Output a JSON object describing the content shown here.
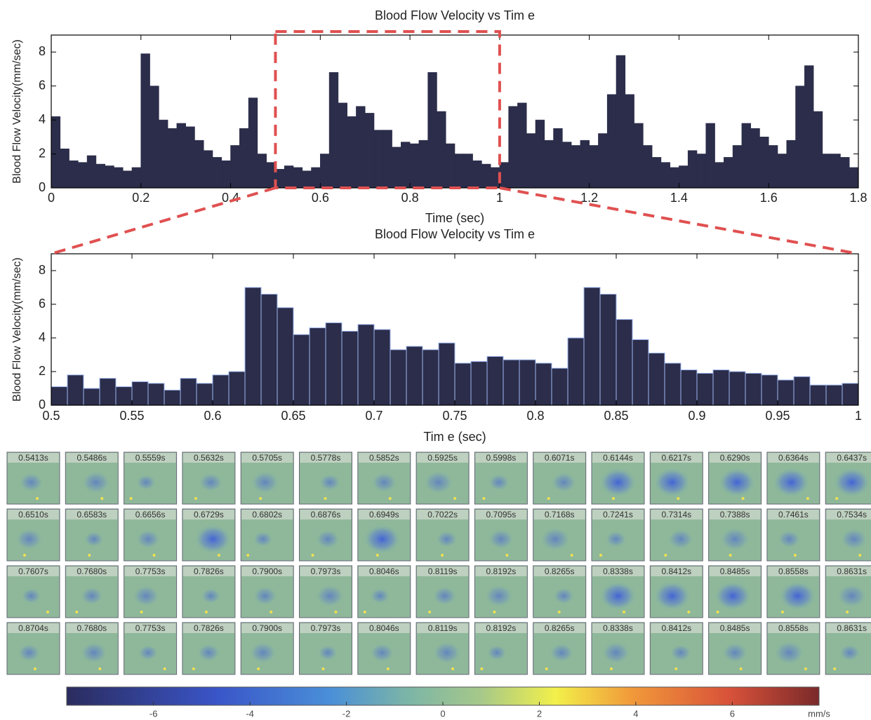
{
  "chart_data": [
    {
      "type": "bar",
      "title": "Blood Flow Velocity vs Tim e",
      "xlabel": "Time (sec)",
      "ylabel": "Blood Flow Velocity(mm/sec)",
      "color": "#2b2d4a",
      "x": [
        0,
        0.02,
        0.04,
        0.06,
        0.08,
        0.1,
        0.12,
        0.14,
        0.16,
        0.18,
        0.2,
        0.22,
        0.24,
        0.26,
        0.28,
        0.3,
        0.32,
        0.34,
        0.36,
        0.38,
        0.4,
        0.42,
        0.44,
        0.46,
        0.48,
        0.5,
        0.52,
        0.54,
        0.56,
        0.58,
        0.6,
        0.62,
        0.64,
        0.66,
        0.68,
        0.7,
        0.72,
        0.74,
        0.76,
        0.78,
        0.8,
        0.82,
        0.84,
        0.86,
        0.88,
        0.9,
        0.92,
        0.94,
        0.96,
        0.98,
        1.0,
        1.02,
        1.04,
        1.06,
        1.08,
        1.1,
        1.12,
        1.14,
        1.16,
        1.18,
        1.2,
        1.22,
        1.24,
        1.26,
        1.28,
        1.3,
        1.32,
        1.34,
        1.36,
        1.38,
        1.4,
        1.42,
        1.44,
        1.46,
        1.48,
        1.5,
        1.52,
        1.54,
        1.56,
        1.58,
        1.6,
        1.62,
        1.64,
        1.66,
        1.68,
        1.7,
        1.72,
        1.74,
        1.76,
        1.78
      ],
      "values": [
        4.2,
        2.3,
        1.6,
        1.5,
        1.9,
        1.4,
        1.3,
        1.2,
        1.0,
        1.2,
        7.9,
        6.0,
        4.0,
        3.5,
        3.8,
        3.6,
        2.8,
        2.2,
        1.8,
        1.6,
        2.5,
        3.5,
        5.3,
        2.0,
        1.5,
        1.1,
        1.3,
        1.2,
        1.0,
        1.2,
        2.0,
        6.8,
        5.0,
        4.2,
        4.8,
        4.4,
        3.4,
        3.4,
        2.4,
        2.7,
        2.6,
        2.8,
        6.8,
        4.5,
        2.6,
        2.0,
        2.0,
        1.6,
        1.4,
        1.2,
        1.5,
        4.8,
        5.0,
        3.2,
        4.0,
        2.8,
        3.5,
        2.7,
        2.5,
        2.8,
        2.5,
        3.2,
        5.5,
        7.8,
        5.5,
        3.8,
        2.5,
        1.8,
        1.5,
        1.2,
        1.3,
        2.2,
        2.0,
        3.8,
        1.5,
        1.8,
        2.5,
        3.8,
        3.5,
        3.0,
        2.5,
        2.0,
        2.8,
        6.0,
        7.2,
        4.5,
        2.0,
        2.0,
        1.8,
        1.2
      ],
      "xlim": [
        0,
        1.8
      ],
      "xticks": [
        0,
        0.2,
        0.4,
        0.6,
        0.8,
        1,
        1.2,
        1.4,
        1.6,
        1.8
      ],
      "ylim": [
        0,
        9
      ],
      "yticks": [
        0,
        2,
        4,
        6,
        8
      ]
    },
    {
      "type": "bar",
      "title": "Blood Flow Velocity vs Tim e",
      "xlabel": "Tim e (sec)",
      "ylabel": "Blood Flow Velocity(mm/sec)",
      "color": "#2b2d4a",
      "x": [
        0.5,
        0.51,
        0.52,
        0.53,
        0.54,
        0.55,
        0.56,
        0.57,
        0.58,
        0.59,
        0.6,
        0.61,
        0.62,
        0.63,
        0.64,
        0.65,
        0.66,
        0.67,
        0.68,
        0.69,
        0.7,
        0.71,
        0.72,
        0.73,
        0.74,
        0.75,
        0.76,
        0.77,
        0.78,
        0.79,
        0.8,
        0.81,
        0.82,
        0.83,
        0.84,
        0.85,
        0.86,
        0.87,
        0.88,
        0.89,
        0.9,
        0.91,
        0.92,
        0.93,
        0.94,
        0.95,
        0.96,
        0.97,
        0.98,
        0.99
      ],
      "values": [
        1.1,
        1.8,
        1.0,
        1.6,
        1.1,
        1.4,
        1.3,
        0.9,
        1.6,
        1.3,
        1.8,
        2.0,
        7.0,
        6.6,
        5.8,
        4.2,
        4.6,
        4.9,
        4.4,
        4.8,
        4.5,
        3.3,
        3.5,
        3.3,
        3.7,
        2.5,
        2.6,
        2.9,
        2.7,
        2.7,
        2.5,
        2.2,
        4.0,
        7.0,
        6.6,
        5.1,
        3.9,
        3.1,
        2.5,
        2.1,
        1.9,
        2.1,
        2.0,
        1.9,
        1.8,
        1.5,
        1.7,
        1.2,
        1.2,
        1.3
      ],
      "xlim": [
        0.5,
        1
      ],
      "xticks": [
        0.5,
        0.55,
        0.6,
        0.65,
        0.7,
        0.75,
        0.8,
        0.85,
        0.9,
        0.95,
        1
      ],
      "ylim": [
        0,
        9
      ],
      "yticks": [
        0,
        2,
        4,
        6,
        8
      ]
    }
  ],
  "frames": [
    "0.5413s",
    "0.5486s",
    "0.5559s",
    "0.5632s",
    "0.5705s",
    "0.5778s",
    "0.5852s",
    "0.5925s",
    "0.5998s",
    "0.6071s",
    "0.6144s",
    "0.6217s",
    "0.6290s",
    "0.6364s",
    "0.6437s",
    "0.6510s",
    "0.6583s",
    "0.6656s",
    "0.6729s",
    "0.6802s",
    "0.6876s",
    "0.6949s",
    "0.7022s",
    "0.7095s",
    "0.7168s",
    "0.7241s",
    "0.7314s",
    "0.7388s",
    "0.7461s",
    "0.7534s",
    "0.7607s",
    "0.7680s",
    "0.7753s",
    "0.7826s",
    "0.7900s",
    "0.7973s",
    "0.8046s",
    "0.8119s",
    "0.8192s",
    "0.8265s",
    "0.8338s",
    "0.8412s",
    "0.8485s",
    "0.8558s",
    "0.8631s",
    "0.8704s",
    "0.7680s",
    "0.7753s",
    "0.7826s",
    "0.7900s",
    "0.7973s",
    "0.8046s",
    "0.8119s",
    "0.8192s",
    "0.8265s",
    "0.8338s",
    "0.8412s",
    "0.8485s",
    "0.8558s",
    "0.8631s"
  ],
  "colorbar": {
    "lim": [
      -7.8,
      7.8
    ],
    "ticks": [
      -6,
      -4,
      -2,
      0,
      2,
      4,
      6
    ],
    "unit": "mm/s"
  }
}
